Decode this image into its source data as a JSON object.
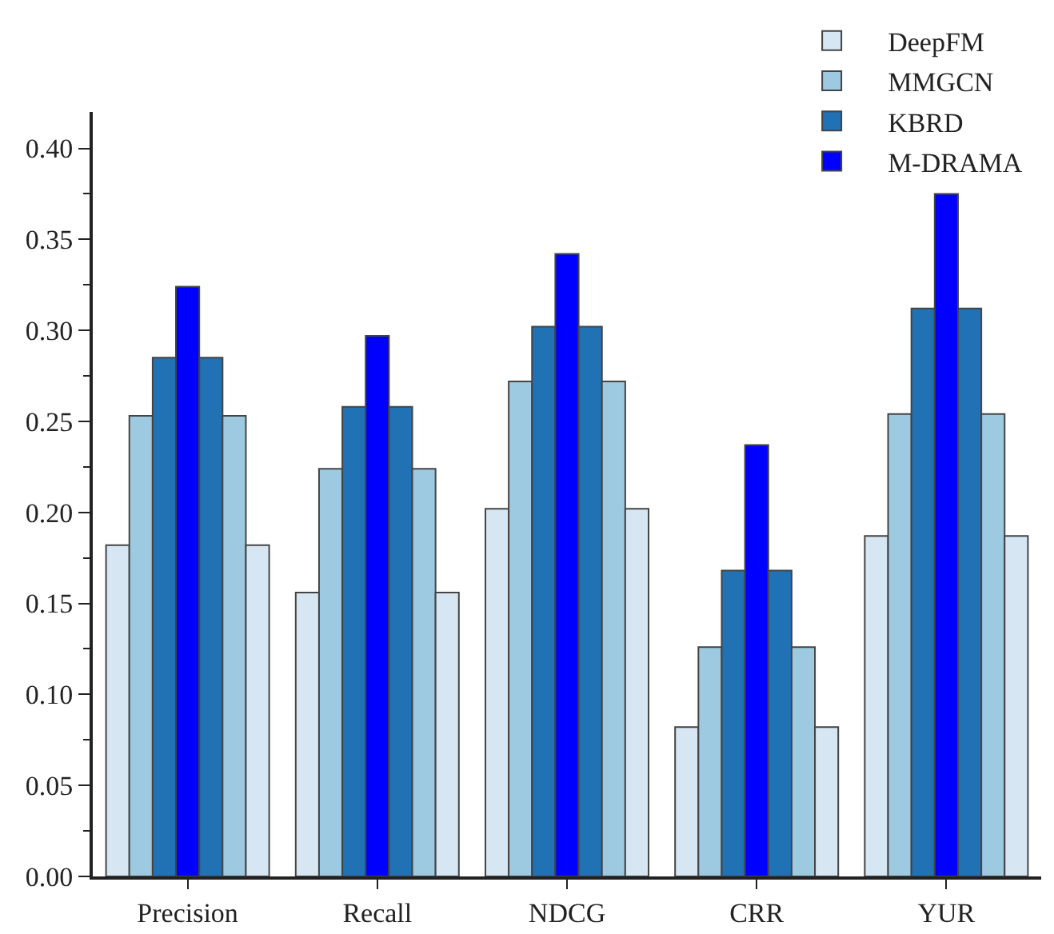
{
  "chart_data": {
    "type": "bar",
    "categories": [
      "Precision",
      "Recall",
      "NDCG",
      "CRR",
      "YUR"
    ],
    "series": [
      {
        "name": "DeepFM",
        "color": "#d6e6f2",
        "values": [
          0.182,
          0.156,
          0.202,
          0.082,
          0.187
        ]
      },
      {
        "name": "MMGCN",
        "color": "#9ecae1",
        "values": [
          0.253,
          0.224,
          0.272,
          0.126,
          0.254
        ]
      },
      {
        "name": "KBRD",
        "color": "#2171b5",
        "values": [
          0.285,
          0.258,
          0.302,
          0.168,
          0.312
        ]
      },
      {
        "name": "M-DRAMA",
        "color": "#0000ff",
        "values": [
          0.324,
          0.297,
          0.342,
          0.237,
          0.375
        ]
      },
      {
        "color": "#2171b5",
        "values": [
          0.285,
          0.258,
          0.302,
          0.168,
          0.312
        ]
      },
      {
        "color": "#9ecae1",
        "values": [
          0.253,
          0.224,
          0.272,
          0.126,
          0.254
        ]
      },
      {
        "color": "#d6e6f2",
        "values": [
          0.182,
          0.156,
          0.202,
          0.082,
          0.187
        ]
      }
    ],
    "ylim": [
      0,
      0.42
    ],
    "yticks": [
      {
        "value": 0,
        "label": "0.00"
      },
      {
        "value": 0.05,
        "label": "0.05"
      },
      {
        "value": 0.1,
        "label": "0.10"
      },
      {
        "value": 0.15,
        "label": "0.15"
      },
      {
        "value": 0.2,
        "label": "0.20"
      },
      {
        "value": 0.25,
        "label": "0.25"
      },
      {
        "value": 0.3,
        "label": "0.30"
      },
      {
        "value": 0.35,
        "label": "0.35"
      },
      {
        "value": 0.4,
        "label": "0.40"
      }
    ],
    "grid": false,
    "legend": "top right"
  }
}
